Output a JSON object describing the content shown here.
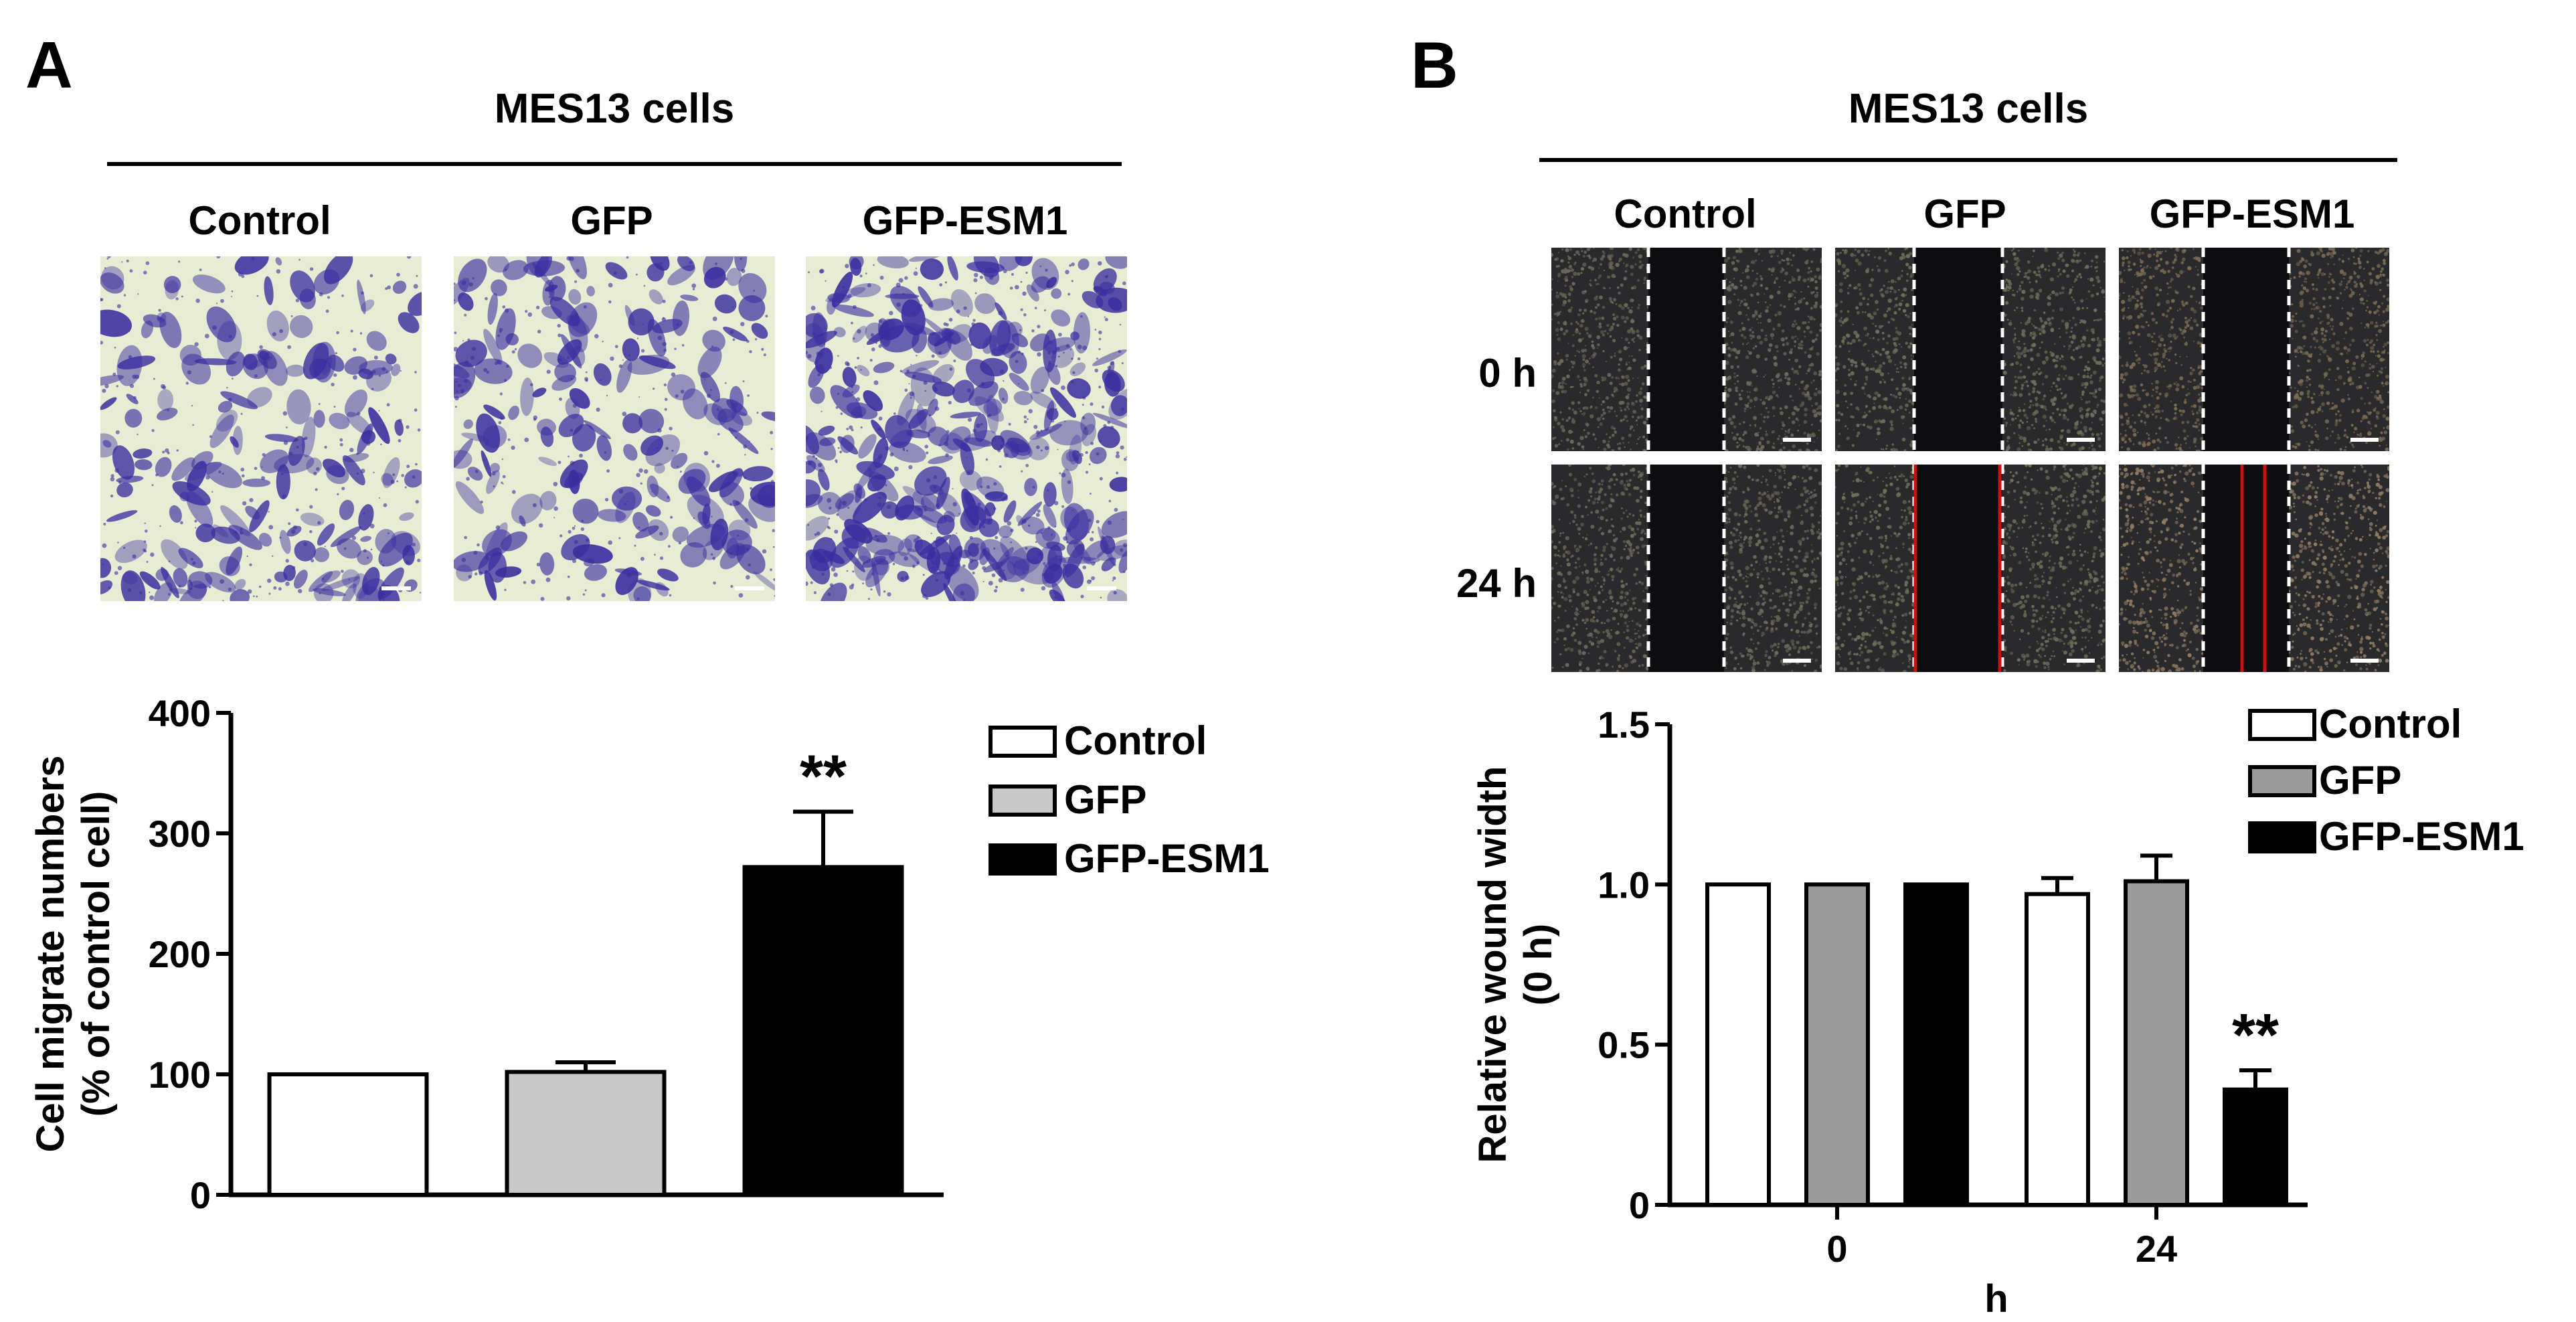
{
  "panelA": {
    "letter": "A",
    "header": "MES13 cells",
    "columns": [
      "Control",
      "GFP",
      "GFP-ESM1"
    ]
  },
  "panelB": {
    "letter": "B",
    "header": "MES13 cells",
    "columns": [
      "Control",
      "GFP",
      "GFP-ESM1"
    ],
    "rows": [
      "0 h",
      "24 h"
    ]
  },
  "colors": {
    "stain_bg": "#e8ecd2",
    "stain_violet": "#3a2ea0",
    "scratch_bg": "#2a2a2c",
    "wound_red": "#cc1010",
    "bar_control": "#ffffff",
    "bar_gfp_A": "#c8c8c8",
    "bar_gfp_B": "#9a9a9a",
    "bar_esm1": "#000000"
  },
  "chart_data": [
    {
      "type": "bar",
      "title": "",
      "categories": [
        "Control",
        "GFP",
        "GFP-ESM1"
      ],
      "values": [
        100,
        102,
        272
      ],
      "errors": [
        0,
        8,
        46
      ],
      "ylabel": "Cell migrate numbers (% of control cell)",
      "ylabel_lines": [
        "Cell migrate numbers",
        "(% of control cell)"
      ],
      "xlabel": "",
      "ylim": [
        0,
        400
      ],
      "yticks": [
        "0",
        "100",
        "200",
        "300",
        "400"
      ],
      "legend": [
        "Control",
        "GFP",
        "GFP-ESM1"
      ],
      "legend_position": "right",
      "annotations": [
        {
          "category": "GFP-ESM1",
          "text": "**"
        }
      ]
    },
    {
      "type": "bar",
      "title": "",
      "categories": [
        "0",
        "24"
      ],
      "xlabel": "h",
      "ylabel": "Relative wound width (0 h)",
      "ylabel_lines": [
        "Relative wound width",
        "(0 h)"
      ],
      "ylim": [
        0,
        1.5
      ],
      "yticks": [
        "0",
        "0.5",
        "1.0",
        "1.5"
      ],
      "series": [
        {
          "name": "Control",
          "values": [
            1.0,
            0.97
          ],
          "errors": [
            0,
            0.05
          ]
        },
        {
          "name": "GFP",
          "values": [
            1.0,
            1.01
          ],
          "errors": [
            0,
            0.08
          ]
        },
        {
          "name": "GFP-ESM1",
          "values": [
            1.0,
            0.36
          ],
          "errors": [
            0,
            0.06
          ]
        }
      ],
      "legend_position": "top-right",
      "annotations": [
        {
          "category": "24",
          "series": "GFP-ESM1",
          "text": "**"
        }
      ]
    }
  ]
}
